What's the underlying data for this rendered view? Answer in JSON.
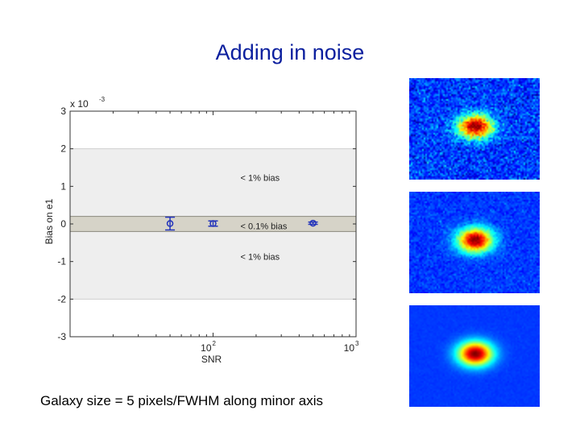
{
  "slide": {
    "title": "Adding in noise",
    "caption": "Galaxy size = 5 pixels/FWHM along minor axis"
  },
  "colors": {
    "title": "#0b1f9e",
    "marker": "#2233bb",
    "band_outer": "#eeeeee",
    "band_inner": "#d6d3c8",
    "noise_background": "#1a3cf0",
    "galaxy_core": "#d01010"
  },
  "chart_data": {
    "type": "scatter",
    "x_scale": "log",
    "xlim": [
      10,
      1000
    ],
    "ylim": [
      -0.003,
      0.003
    ],
    "xlabel": "SNR",
    "ylabel": "Bias on e1",
    "y_multiplier_label": "x 10",
    "y_multiplier_exponent": "-3",
    "y_ticks": [
      {
        "value": -0.003,
        "label": "-3"
      },
      {
        "value": -0.002,
        "label": "-2"
      },
      {
        "value": -0.001,
        "label": "-1"
      },
      {
        "value": 0,
        "label": "0"
      },
      {
        "value": 0.001,
        "label": "1"
      },
      {
        "value": 0.002,
        "label": "2"
      },
      {
        "value": 0.003,
        "label": "3"
      }
    ],
    "x_ticks": [
      {
        "value": 100,
        "base": "10",
        "exponent": "2"
      },
      {
        "value": 1000,
        "base": "10",
        "exponent": "3"
      }
    ],
    "bands": [
      {
        "y0": -0.002,
        "y1": 0.002,
        "label": "< 1% bias",
        "label_y_upper": 0.00115,
        "label_y_lower": -0.00095
      },
      {
        "y0": -0.0002,
        "y1": 0.0002,
        "label": "< 0.1% bias",
        "label_y": -0.00012
      }
    ],
    "band_label_x": 120,
    "grid": false,
    "points": [
      {
        "x": 50,
        "y": 1e-05,
        "err": 0.00017
      },
      {
        "x": 100,
        "y": 1e-05,
        "err": 7e-05
      },
      {
        "x": 500,
        "y": 2e-05,
        "err": 3e-05
      }
    ]
  },
  "noise_panels": [
    {
      "noise_level": 0.55
    },
    {
      "noise_level": 0.25
    },
    {
      "noise_level": 0.05
    }
  ]
}
